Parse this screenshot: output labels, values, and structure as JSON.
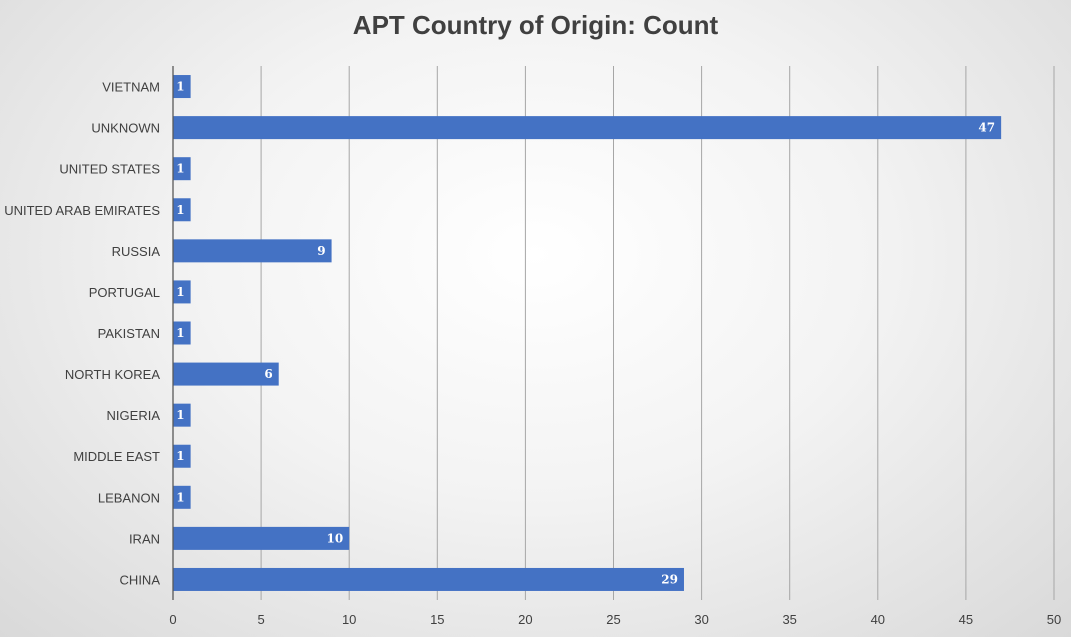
{
  "chart_data": {
    "type": "bar",
    "orientation": "horizontal",
    "title": "APT Country of Origin: Count",
    "xlabel": "",
    "ylabel": "",
    "categories": [
      "CHINA",
      "IRAN",
      "LEBANON",
      "MIDDLE EAST",
      "NIGERIA",
      "NORTH KOREA",
      "PAKISTAN",
      "PORTUGAL",
      "RUSSIA",
      "UNITED ARAB EMIRATES",
      "UNITED STATES",
      "UNKNOWN",
      "VIETNAM"
    ],
    "values": [
      29,
      10,
      1,
      1,
      1,
      6,
      1,
      1,
      9,
      1,
      1,
      47,
      1
    ],
    "xlim": [
      0,
      50
    ],
    "xticks": [
      0,
      5,
      10,
      15,
      20,
      25,
      30,
      35,
      40,
      45,
      50
    ],
    "grid": "vertical",
    "legend": "none",
    "data_labels": true,
    "bar_color": "#4472c4",
    "grid_color": "#a6a6a6",
    "text_color": "#404040"
  }
}
